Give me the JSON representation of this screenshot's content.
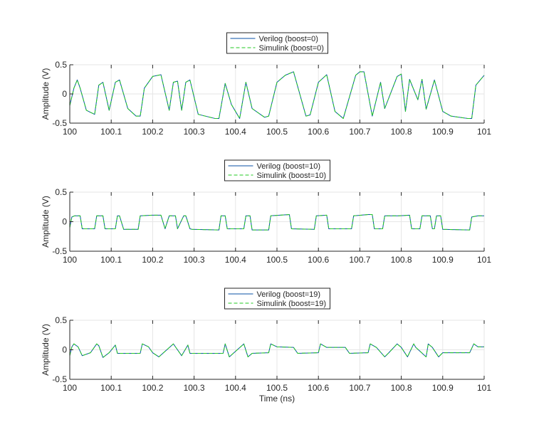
{
  "colors": {
    "verilog": "#0a51a6",
    "simulink": "#22c922",
    "grid": "#e6e6e6",
    "axis": "#262626"
  },
  "chart_data": [
    {
      "type": "line",
      "xlabel": "",
      "ylabel": "Amplitude (V)",
      "xlim": [
        100,
        101
      ],
      "ylim": [
        -0.5,
        0.5
      ],
      "xticks": [
        "100",
        "100.1",
        "100.2",
        "100.3",
        "100.4",
        "100.5",
        "100.6",
        "100.7",
        "100.8",
        "100.9",
        "101"
      ],
      "yticks": [
        "0.5",
        "0",
        "-0.5"
      ],
      "grid": true,
      "legend_position": "top-center",
      "series": [
        {
          "name": "Verilog (boost=0)",
          "style": "solid",
          "color": "#0a51a6",
          "x": [
            100.0,
            100.01,
            100.018,
            100.025,
            100.04,
            100.06,
            100.07,
            100.08,
            100.095,
            100.11,
            100.12,
            100.14,
            100.16,
            100.17,
            100.18,
            100.2,
            100.22,
            100.24,
            100.25,
            100.26,
            100.27,
            100.28,
            100.29,
            100.31,
            100.35,
            100.36,
            100.375,
            100.39,
            100.41,
            100.425,
            100.44,
            100.47,
            100.48,
            100.5,
            100.52,
            100.54,
            100.57,
            100.58,
            100.6,
            100.62,
            100.64,
            100.66,
            100.69,
            100.7,
            100.71,
            100.73,
            100.75,
            100.76,
            100.79,
            100.8,
            100.81,
            100.82,
            100.84,
            100.85,
            100.86,
            100.88,
            100.9,
            100.92,
            100.96,
            100.97,
            100.98,
            101.0
          ],
          "y": [
            -0.2,
            0.1,
            0.24,
            0.1,
            -0.28,
            -0.35,
            0.15,
            0.2,
            -0.28,
            0.2,
            0.24,
            -0.25,
            -0.38,
            -0.38,
            0.1,
            0.3,
            0.33,
            -0.28,
            0.2,
            0.22,
            -0.28,
            0.2,
            0.24,
            -0.35,
            -0.42,
            -0.42,
            0.18,
            -0.18,
            -0.42,
            0.2,
            -0.25,
            -0.4,
            -0.38,
            0.2,
            0.32,
            0.38,
            -0.38,
            -0.36,
            0.2,
            0.33,
            -0.3,
            -0.42,
            0.32,
            0.38,
            0.38,
            -0.38,
            0.2,
            -0.25,
            0.3,
            0.34,
            -0.3,
            0.25,
            -0.1,
            0.25,
            -0.26,
            0.24,
            -0.3,
            -0.38,
            -0.42,
            -0.42,
            0.15,
            0.32
          ]
        },
        {
          "name": "Simulink (boost=0)",
          "style": "dashed",
          "color": "#22c922",
          "x": [
            100.0,
            100.01,
            100.018,
            100.025,
            100.04,
            100.06,
            100.07,
            100.08,
            100.095,
            100.11,
            100.12,
            100.14,
            100.16,
            100.17,
            100.18,
            100.2,
            100.22,
            100.24,
            100.25,
            100.26,
            100.27,
            100.28,
            100.29,
            100.31,
            100.35,
            100.36,
            100.375,
            100.39,
            100.41,
            100.425,
            100.44,
            100.47,
            100.48,
            100.5,
            100.52,
            100.54,
            100.57,
            100.58,
            100.6,
            100.62,
            100.64,
            100.66,
            100.69,
            100.7,
            100.71,
            100.73,
            100.75,
            100.76,
            100.79,
            100.8,
            100.81,
            100.82,
            100.84,
            100.85,
            100.86,
            100.88,
            100.9,
            100.92,
            100.96,
            100.97,
            100.98,
            101.0
          ],
          "y": [
            -0.2,
            0.1,
            0.24,
            0.1,
            -0.28,
            -0.35,
            0.15,
            0.2,
            -0.28,
            0.2,
            0.24,
            -0.25,
            -0.38,
            -0.38,
            0.1,
            0.3,
            0.33,
            -0.28,
            0.2,
            0.22,
            -0.28,
            0.2,
            0.24,
            -0.35,
            -0.42,
            -0.42,
            0.18,
            -0.18,
            -0.42,
            0.2,
            -0.25,
            -0.4,
            -0.38,
            0.2,
            0.32,
            0.38,
            -0.38,
            -0.36,
            0.2,
            0.33,
            -0.3,
            -0.42,
            0.32,
            0.38,
            0.38,
            -0.38,
            0.2,
            -0.25,
            0.3,
            0.34,
            -0.3,
            0.25,
            -0.1,
            0.25,
            -0.26,
            0.24,
            -0.3,
            -0.38,
            -0.42,
            -0.42,
            0.15,
            0.32
          ]
        }
      ]
    },
    {
      "type": "line",
      "xlabel": "",
      "ylabel": "Amplitude (V)",
      "xlim": [
        100,
        101
      ],
      "ylim": [
        -0.5,
        0.5
      ],
      "xticks": [
        "100",
        "100.1",
        "100.2",
        "100.3",
        "100.4",
        "100.5",
        "100.6",
        "100.7",
        "100.8",
        "100.9",
        "101"
      ],
      "yticks": [
        "0.5",
        "0",
        "-0.5"
      ],
      "grid": true,
      "legend_position": "top-center",
      "series": [
        {
          "name": "Verilog (boost=10)",
          "style": "solid",
          "color": "#0a51a6",
          "x": [
            100.0,
            100.005,
            100.012,
            100.025,
            100.03,
            100.06,
            100.065,
            100.08,
            100.085,
            100.11,
            100.115,
            100.12,
            100.13,
            100.165,
            100.17,
            100.2,
            100.22,
            100.23,
            100.24,
            100.255,
            100.26,
            100.275,
            100.28,
            100.29,
            100.295,
            100.36,
            100.365,
            100.375,
            100.38,
            100.42,
            100.425,
            100.435,
            100.44,
            100.48,
            100.485,
            100.53,
            100.535,
            100.59,
            100.595,
            100.62,
            100.625,
            100.68,
            100.685,
            100.72,
            100.73,
            100.735,
            100.755,
            100.76,
            100.79,
            100.795,
            100.82,
            100.825,
            100.845,
            100.85,
            100.87,
            100.875,
            100.88,
            100.885,
            100.895,
            100.9,
            100.965,
            100.97,
            100.985,
            101.0
          ],
          "y": [
            -0.1,
            0.08,
            0.1,
            0.1,
            -0.12,
            -0.12,
            0.1,
            0.1,
            -0.12,
            -0.12,
            0.1,
            0.1,
            -0.13,
            -0.13,
            0.1,
            0.11,
            0.11,
            -0.12,
            0.1,
            0.1,
            -0.12,
            0.1,
            0.1,
            -0.12,
            -0.13,
            -0.14,
            0.1,
            0.1,
            -0.12,
            -0.12,
            0.1,
            0.1,
            -0.14,
            -0.14,
            0.1,
            0.12,
            -0.12,
            -0.13,
            0.1,
            0.11,
            -0.12,
            -0.12,
            0.1,
            0.12,
            0.12,
            -0.12,
            -0.12,
            0.1,
            0.1,
            0.1,
            0.11,
            -0.12,
            -0.12,
            0.1,
            0.1,
            -0.12,
            -0.12,
            0.1,
            0.1,
            -0.13,
            -0.14,
            0.08,
            0.1,
            0.1
          ]
        },
        {
          "name": "Simulink (boost=10)",
          "style": "dashed",
          "color": "#22c922",
          "x": [
            100.0,
            100.005,
            100.012,
            100.025,
            100.03,
            100.06,
            100.065,
            100.08,
            100.085,
            100.11,
            100.115,
            100.12,
            100.13,
            100.165,
            100.17,
            100.2,
            100.22,
            100.23,
            100.24,
            100.255,
            100.26,
            100.275,
            100.28,
            100.29,
            100.295,
            100.36,
            100.365,
            100.375,
            100.38,
            100.42,
            100.425,
            100.435,
            100.44,
            100.48,
            100.485,
            100.53,
            100.535,
            100.59,
            100.595,
            100.62,
            100.625,
            100.68,
            100.685,
            100.72,
            100.73,
            100.735,
            100.755,
            100.76,
            100.79,
            100.795,
            100.82,
            100.825,
            100.845,
            100.85,
            100.87,
            100.875,
            100.88,
            100.885,
            100.895,
            100.9,
            100.965,
            100.97,
            100.985,
            101.0
          ],
          "y": [
            -0.1,
            0.08,
            0.1,
            0.1,
            -0.12,
            -0.12,
            0.1,
            0.1,
            -0.12,
            -0.12,
            0.1,
            0.1,
            -0.13,
            -0.13,
            0.1,
            0.11,
            0.11,
            -0.12,
            0.1,
            0.1,
            -0.12,
            0.1,
            0.1,
            -0.12,
            -0.13,
            -0.14,
            0.1,
            0.1,
            -0.12,
            -0.12,
            0.1,
            0.1,
            -0.14,
            -0.14,
            0.1,
            0.12,
            -0.12,
            -0.13,
            0.1,
            0.11,
            -0.12,
            -0.12,
            0.1,
            0.12,
            0.12,
            -0.12,
            -0.12,
            0.1,
            0.1,
            0.1,
            0.11,
            -0.12,
            -0.12,
            0.1,
            0.1,
            -0.12,
            -0.12,
            0.1,
            0.1,
            -0.13,
            -0.14,
            0.08,
            0.1,
            0.1
          ]
        }
      ]
    },
    {
      "type": "line",
      "xlabel": "Time (ns)",
      "ylabel": "Amplitude (V)",
      "xlim": [
        100,
        101
      ],
      "ylim": [
        -0.5,
        0.5
      ],
      "xticks": [
        "100",
        "100.1",
        "100.2",
        "100.3",
        "100.4",
        "100.5",
        "100.6",
        "100.7",
        "100.8",
        "100.9",
        "101"
      ],
      "yticks": [
        "0.5",
        "0",
        "-0.5"
      ],
      "grid": true,
      "legend_position": "top-center",
      "series": [
        {
          "name": "Verilog (boost=19)",
          "style": "solid",
          "color": "#0a51a6",
          "x": [
            100.0,
            100.005,
            100.01,
            100.02,
            100.03,
            100.05,
            100.065,
            100.07,
            100.08,
            100.095,
            100.11,
            100.115,
            100.17,
            100.175,
            100.19,
            100.2,
            100.215,
            100.25,
            100.255,
            100.27,
            100.285,
            100.29,
            100.37,
            100.375,
            100.385,
            100.42,
            100.43,
            100.44,
            100.48,
            100.485,
            100.5,
            100.54,
            100.55,
            100.6,
            100.605,
            100.62,
            100.665,
            100.675,
            100.72,
            100.725,
            100.74,
            100.76,
            100.77,
            100.79,
            100.8,
            100.815,
            100.83,
            100.835,
            100.86,
            100.865,
            100.875,
            100.89,
            100.9,
            100.965,
            100.975,
            100.985,
            101.0
          ],
          "y": [
            -0.1,
            0.05,
            0.1,
            0.05,
            -0.1,
            -0.05,
            0.1,
            0.07,
            -0.13,
            -0.05,
            0.08,
            -0.06,
            -0.06,
            0.1,
            0.05,
            -0.05,
            -0.12,
            0.1,
            0.05,
            -0.1,
            0.08,
            -0.06,
            -0.06,
            0.1,
            -0.12,
            0.1,
            -0.12,
            -0.06,
            -0.05,
            0.1,
            0.05,
            0.04,
            -0.06,
            -0.05,
            0.1,
            0.04,
            0.04,
            -0.06,
            -0.05,
            0.1,
            0.04,
            -0.12,
            -0.05,
            0.1,
            0.04,
            -0.12,
            0.1,
            0.04,
            -0.12,
            0.1,
            0.04,
            -0.12,
            -0.05,
            -0.05,
            0.1,
            0.05,
            0.05
          ]
        },
        {
          "name": "Simulink (boost=19)",
          "style": "dashed",
          "color": "#22c922",
          "x": [
            100.0,
            100.005,
            100.01,
            100.02,
            100.03,
            100.05,
            100.065,
            100.07,
            100.08,
            100.095,
            100.11,
            100.115,
            100.17,
            100.175,
            100.19,
            100.2,
            100.215,
            100.25,
            100.255,
            100.27,
            100.285,
            100.29,
            100.37,
            100.375,
            100.385,
            100.42,
            100.43,
            100.44,
            100.48,
            100.485,
            100.5,
            100.54,
            100.55,
            100.6,
            100.605,
            100.62,
            100.665,
            100.675,
            100.72,
            100.725,
            100.74,
            100.76,
            100.77,
            100.79,
            100.8,
            100.815,
            100.83,
            100.835,
            100.86,
            100.865,
            100.875,
            100.89,
            100.9,
            100.965,
            100.975,
            100.985,
            101.0
          ],
          "y": [
            -0.1,
            0.05,
            0.1,
            0.05,
            -0.1,
            -0.05,
            0.1,
            0.07,
            -0.13,
            -0.05,
            0.08,
            -0.06,
            -0.06,
            0.1,
            0.05,
            -0.05,
            -0.12,
            0.1,
            0.05,
            -0.1,
            0.08,
            -0.06,
            -0.06,
            0.1,
            -0.12,
            0.1,
            -0.12,
            -0.06,
            -0.05,
            0.1,
            0.05,
            0.04,
            -0.06,
            -0.05,
            0.1,
            0.04,
            0.04,
            -0.06,
            -0.05,
            0.1,
            0.04,
            -0.12,
            -0.05,
            0.1,
            0.04,
            -0.12,
            0.1,
            0.04,
            -0.12,
            0.1,
            0.04,
            -0.12,
            -0.05,
            -0.05,
            0.1,
            0.05,
            0.05
          ]
        }
      ]
    }
  ]
}
